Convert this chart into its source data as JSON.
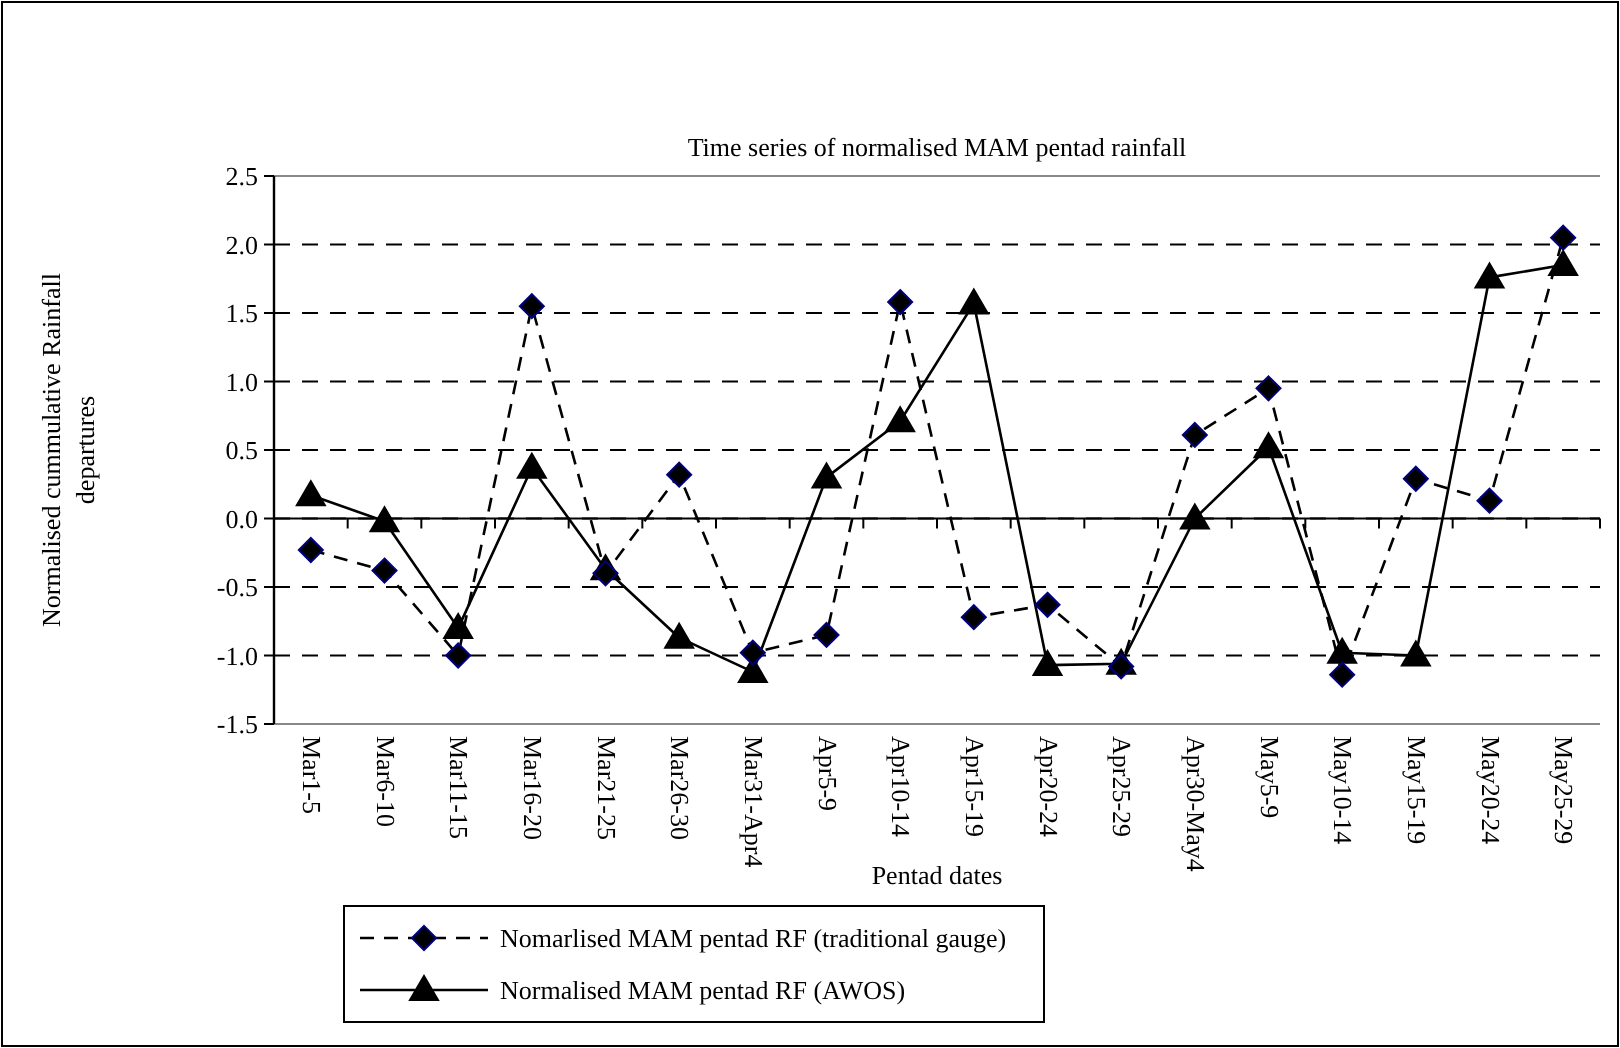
{
  "chart_data": {
    "type": "line",
    "title": "Time series of normalised MAM pentad rainfall",
    "xlabel": "Pentad dates",
    "ylabel": "Normalised cummulative Rainfall departures",
    "categories": [
      "Mar1-5",
      "Mar6-10",
      "Mar11-15",
      "Mar16-20",
      "Mar21-25",
      "Mar26-30",
      "Mar31-Apr4",
      "Apr5-9",
      "Apr10-14",
      "Apr15-19",
      "Apr20-24",
      "Apr25-29",
      "Apr30-May4",
      "May5-9",
      "May10-14",
      "May15-19",
      "May20-24",
      "May25-29"
    ],
    "series": [
      {
        "name": "Nomarlised MAM pentad RF (traditional gauge)",
        "color": "#000000",
        "marker": "diamond",
        "line_style": "dashed",
        "values": [
          -0.23,
          -0.38,
          -1.0,
          1.55,
          -0.4,
          0.32,
          -0.98,
          -0.85,
          1.58,
          -0.72,
          -0.63,
          -1.08,
          0.61,
          0.95,
          -1.14,
          0.29,
          0.13,
          2.05
        ]
      },
      {
        "name": "Normalised MAM pentad RF (AWOS)",
        "color": "#000000",
        "marker": "triangle",
        "line_style": "solid",
        "values": [
          0.17,
          -0.02,
          -0.8,
          0.37,
          -0.37,
          -0.87,
          -1.12,
          0.3,
          0.71,
          1.57,
          -1.07,
          -1.06,
          0.0,
          0.52,
          -0.98,
          -1.0,
          1.76,
          1.85
        ]
      }
    ],
    "ylim": [
      -1.5,
      2.5
    ],
    "yticks": [
      {
        "value": -1.5,
        "label": "-1.5"
      },
      {
        "value": -1,
        "label": "-1.0"
      },
      {
        "value": -0.5,
        "label": "-0.5"
      },
      {
        "value": 0,
        "label": "0.0"
      },
      {
        "value": 0.5,
        "label": "0.5"
      },
      {
        "value": 1,
        "label": "1.0"
      },
      {
        "value": 1.5,
        "label": "1.5"
      },
      {
        "value": 2,
        "label": "2.0"
      },
      {
        "value": 2.5,
        "label": "2.5"
      }
    ],
    "grid": "y",
    "legend": "bottom"
  }
}
